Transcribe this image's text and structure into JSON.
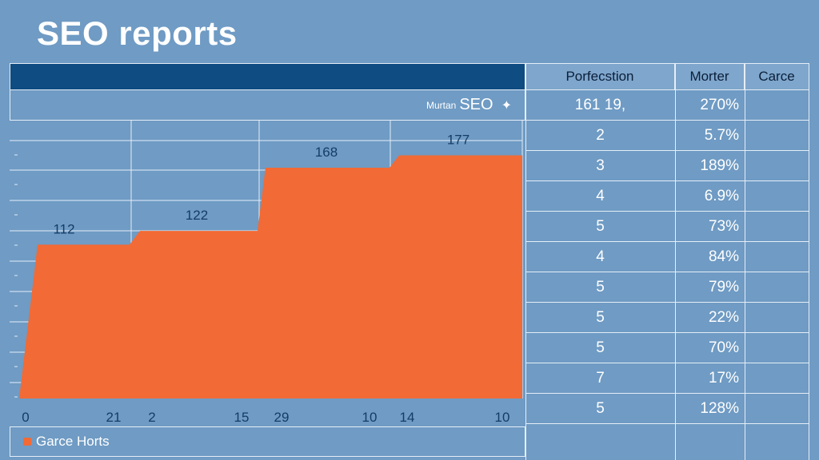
{
  "page": {
    "title": "SEO reports"
  },
  "table": {
    "headers": [
      "Porfecstion",
      "Morter",
      "Carce"
    ],
    "subheader": {
      "small": "Murtan",
      "big": "SEO",
      "icon": "plus-icon"
    },
    "rows": [
      {
        "c1": "161 19,",
        "c2": "270%"
      },
      {
        "c1": "2",
        "c2": "5.7%"
      },
      {
        "c1": "3",
        "c2": "189%"
      },
      {
        "c1": "4",
        "c2": "6.9%"
      },
      {
        "c1": "5",
        "c2": "73%"
      },
      {
        "c1": "4",
        "c2": "84%"
      },
      {
        "c1": "5",
        "c2": "79%"
      },
      {
        "c1": "5",
        "c2": "22%"
      },
      {
        "c1": "5",
        "c2": "70%"
      },
      {
        "c1": "7",
        "c2": "17%"
      },
      {
        "c1": "5",
        "c2": "128%"
      }
    ]
  },
  "chart_data": {
    "type": "area",
    "title": "",
    "xlabel": "",
    "ylabel": "",
    "grid": true,
    "ylim": [
      0,
      200
    ],
    "series": [
      {
        "name": "Garce Horts",
        "color": "#f26a35",
        "values": [
          112,
          122,
          168,
          177
        ]
      }
    ],
    "data_labels": [
      "112",
      "122",
      "168",
      "177"
    ],
    "tick_labels": [
      "0",
      "21",
      "2",
      "15",
      "29",
      "10",
      "14",
      "10"
    ],
    "legend": "bottom-left"
  }
}
